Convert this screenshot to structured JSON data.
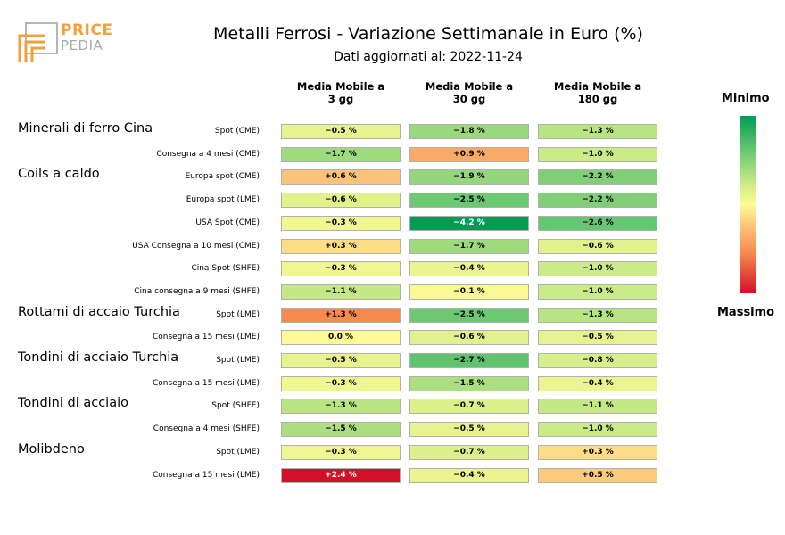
{
  "header": {
    "logo_top": "PRICE",
    "logo_bottom": "PEDIA",
    "title": "Metalli Ferrosi - Variazione Settimanale in Euro (%)",
    "subtitle": "Dati aggiornati al: 2022-11-24"
  },
  "legend": {
    "min_label": "Minimo",
    "max_label": "Massimo"
  },
  "colors": {
    "brand_orange": "#f2a03d",
    "min_green": "#009c55",
    "mid_yellow": "#fefa96",
    "max_red": "#d30f2a"
  },
  "chart_data": {
    "type": "heatmap",
    "title": "Metalli Ferrosi - Variazione Settimanale in Euro (%)",
    "columns": [
      "Media Mobile a\n3 gg",
      "Media Mobile a\n30 gg",
      "Media Mobile a\n180 gg"
    ],
    "groups": [
      {
        "name": "Minerali di ferro Cina",
        "rows": [
          {
            "label": "Spot (CME)",
            "values": [
              -0.5,
              -1.8,
              -1.3
            ],
            "texts": [
              "−0.5 %",
              "−1.8 %",
              "−1.3 %"
            ]
          },
          {
            "label": "Consegna a 4 mesi (CME)",
            "values": [
              -1.7,
              0.9,
              -1.0
            ],
            "texts": [
              "−1.7 %",
              "+0.9 %",
              "−1.0 %"
            ]
          }
        ]
      },
      {
        "name": "Coils a caldo",
        "rows": [
          {
            "label": "Europa spot (CME)",
            "values": [
              0.6,
              -1.9,
              -2.2
            ],
            "texts": [
              "+0.6 %",
              "−1.9 %",
              "−2.2 %"
            ]
          },
          {
            "label": "Europa spot (LME)",
            "values": [
              -0.6,
              -2.5,
              -2.2
            ],
            "texts": [
              "−0.6 %",
              "−2.5 %",
              "−2.2 %"
            ]
          },
          {
            "label": "USA Spot (CME)",
            "values": [
              -0.3,
              -4.2,
              -2.6
            ],
            "texts": [
              "−0.3 %",
              "−4.2 %",
              "−2.6 %"
            ]
          },
          {
            "label": "USA Consegna a 10 mesi (CME)",
            "values": [
              0.3,
              -1.7,
              -0.6
            ],
            "texts": [
              "+0.3 %",
              "−1.7 %",
              "−0.6 %"
            ]
          },
          {
            "label": "Cina Spot (SHFE)",
            "values": [
              -0.3,
              -0.4,
              -1.0
            ],
            "texts": [
              "−0.3 %",
              "−0.4 %",
              "−1.0 %"
            ]
          },
          {
            "label": "Cina consegna a 9 mesi (SHFE)",
            "values": [
              -1.1,
              -0.1,
              -1.0
            ],
            "texts": [
              "−1.1 %",
              "−0.1 %",
              "−1.0 %"
            ]
          }
        ]
      },
      {
        "name": "Rottami di accaio Turchia",
        "rows": [
          {
            "label": "Spot (LME)",
            "values": [
              1.3,
              -2.5,
              -1.3
            ],
            "texts": [
              "+1.3 %",
              "−2.5 %",
              "−1.3 %"
            ]
          },
          {
            "label": "Consegna a 15 mesi (LME)",
            "values": [
              0.0,
              -0.6,
              -0.5
            ],
            "texts": [
              "0.0 %",
              "−0.6 %",
              "−0.5 %"
            ]
          }
        ]
      },
      {
        "name": "Tondini di acciaio Turchia",
        "rows": [
          {
            "label": "Spot (LME)",
            "values": [
              -0.5,
              -2.7,
              -0.8
            ],
            "texts": [
              "−0.5 %",
              "−2.7 %",
              "−0.8 %"
            ]
          },
          {
            "label": "Consegna a 15 mesi (LME)",
            "values": [
              -0.3,
              -1.5,
              -0.4
            ],
            "texts": [
              "−0.3 %",
              "−1.5 %",
              "−0.4 %"
            ]
          }
        ]
      },
      {
        "name": "Tondini di acciaio",
        "rows": [
          {
            "label": "Spot (SHFE)",
            "values": [
              -1.3,
              -0.7,
              -1.1
            ],
            "texts": [
              "−1.3 %",
              "−0.7 %",
              "−1.1 %"
            ]
          },
          {
            "label": "Consegna a 4 mesi (SHFE)",
            "values": [
              -1.5,
              -0.5,
              -1.0
            ],
            "texts": [
              "−1.5 %",
              "−0.5 %",
              "−1.0 %"
            ]
          }
        ]
      },
      {
        "name": "Molibdeno",
        "rows": [
          {
            "label": "Spot (LME)",
            "values": [
              -0.3,
              -0.7,
              0.3
            ],
            "texts": [
              "−0.3 %",
              "−0.7 %",
              "+0.3 %"
            ]
          },
          {
            "label": "Consegna a 15 mesi (LME)",
            "values": [
              2.4,
              -0.4,
              0.5
            ],
            "texts": [
              "+2.4 %",
              "−0.4 %",
              "+0.5 %"
            ]
          }
        ]
      }
    ],
    "colorscale": {
      "min": -4.2,
      "max": 2.4
    }
  }
}
